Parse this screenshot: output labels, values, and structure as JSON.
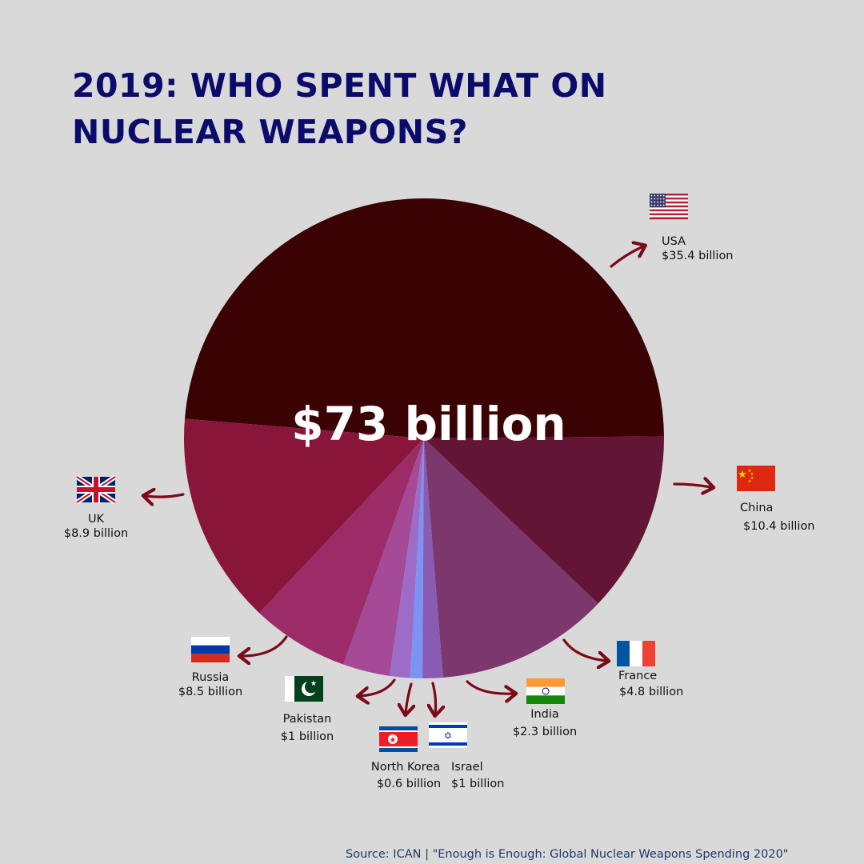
{
  "title": "2019: WHO SPENT WHAT ON NUCLEAR WEAPONS?",
  "source": "Source: ICAN | \"Enough is Enough: Global Nuclear Weapons Spending 2020\"",
  "colors": {
    "background": "#d9d9d9",
    "title": "#0b0b6b",
    "arrow": "#7a0a17",
    "source": "#1f3a68"
  },
  "chart_data": {
    "type": "pie",
    "title": "2019: WHO SPENT WHAT ON NUCLEAR WEAPONS?",
    "center_label": "$73 billion",
    "total": 73,
    "unit": "billion USD",
    "slices": [
      {
        "label": "USA",
        "value": 35.4,
        "value_label": "$35.4 billion",
        "color": "#3b0204",
        "flag": "usa-flag-icon"
      },
      {
        "label": "China",
        "value": 10.4,
        "value_label": "$10.4 billion",
        "color": "#89163a",
        "flag": "china-flag-icon"
      },
      {
        "label": "France",
        "value": 4.8,
        "value_label": "$4.8 billion",
        "color": "#9c2c67",
        "flag": "france-flag-icon"
      },
      {
        "label": "India",
        "value": 2.3,
        "value_label": "$2.3 billion",
        "color": "#a44a96",
        "flag": "india-flag-icon"
      },
      {
        "label": "Israel",
        "value": 1,
        "value_label": "$1 billion",
        "color": "#9c6cc8",
        "flag": "israel-flag-icon"
      },
      {
        "label": "North Korea",
        "value": 0.6,
        "value_label": "$0.6 billion",
        "color": "#7b94f2",
        "flag": "north-korea-flag-icon"
      },
      {
        "label": "Pakistan",
        "value": 1,
        "value_label": "$1 billion",
        "color": "#8a5bb2",
        "flag": "pakistan-flag-icon"
      },
      {
        "label": "Russia",
        "value": 8.5,
        "value_label": "$8.5 billion",
        "color": "#7c376c",
        "flag": "russia-flag-icon"
      },
      {
        "label": "UK",
        "value": 8.9,
        "value_label": "$8.9 billion",
        "color": "#631535",
        "flag": "uk-flag-icon"
      }
    ],
    "legend": "none"
  }
}
